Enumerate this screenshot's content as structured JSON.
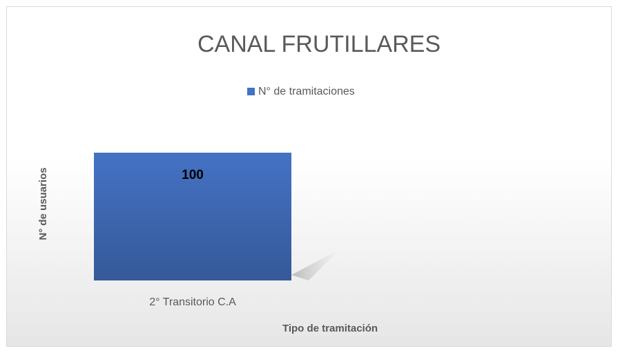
{
  "chart_data": {
    "type": "bar",
    "title": "CANAL FRUTILLARES",
    "categories": [
      "2° Transitorio C.A",
      null
    ],
    "series": [
      {
        "name": "N° de tramitaciones",
        "color": "#4472c4",
        "values": [
          100,
          null
        ]
      }
    ],
    "ylim": [
      0,
      100
    ],
    "xlabel": "Tipo de tramitación",
    "ylabel": "N° de usuarios",
    "legend": "top",
    "grid": false
  }
}
